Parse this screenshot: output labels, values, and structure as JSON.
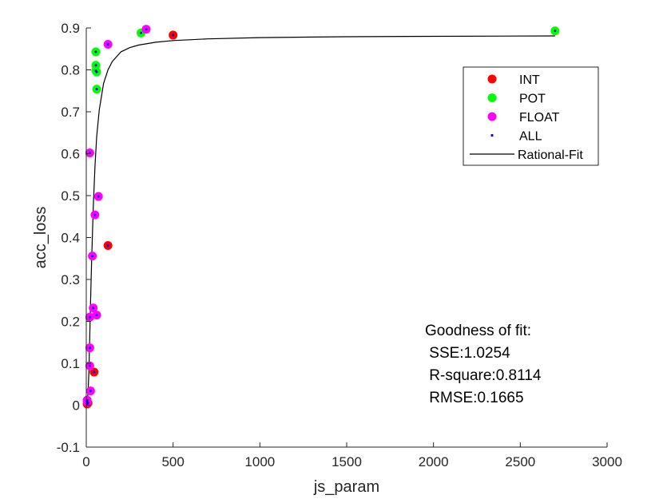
{
  "chart_data": {
    "type": "scatter",
    "xlabel": "js_param",
    "ylabel": "acc_loss",
    "xlim": [
      0,
      3000
    ],
    "ylim": [
      -0.1,
      0.9
    ],
    "xticks": [
      0,
      500,
      1000,
      1500,
      2000,
      2500,
      3000
    ],
    "yticks": [
      -0.1,
      0,
      0.1,
      0.2,
      0.3,
      0.4,
      0.5,
      0.6,
      0.7,
      0.8,
      0.9
    ],
    "xtick_labels": [
      "0",
      "500",
      "1000",
      "1500",
      "2000",
      "2500",
      "3000"
    ],
    "ytick_labels": [
      "-0.1",
      "0",
      "0.1",
      "0.2",
      "0.3",
      "0.4",
      "0.5",
      "0.6",
      "0.7",
      "0.8",
      "0.9"
    ],
    "grid": false,
    "legend_position": "top-right",
    "series": [
      {
        "name": "INT",
        "color": "#ff0000",
        "marker": "large-circle",
        "points": [
          [
            500,
            0.883
          ],
          [
            125,
            0.381
          ],
          [
            45,
            0.079
          ],
          [
            10,
            0.005
          ],
          [
            5,
            0.003
          ]
        ]
      },
      {
        "name": "POT",
        "color": "#00ff00",
        "marker": "large-circle",
        "points": [
          [
            2700,
            0.893
          ],
          [
            315,
            0.888
          ],
          [
            55,
            0.843
          ],
          [
            55,
            0.811
          ],
          [
            55,
            0.798
          ],
          [
            60,
            0.795
          ],
          [
            60,
            0.754
          ]
        ]
      },
      {
        "name": "FLOAT",
        "color": "#ff00ff",
        "marker": "large-circle",
        "points": [
          [
            345,
            0.897
          ],
          [
            125,
            0.861
          ],
          [
            20,
            0.602
          ],
          [
            70,
            0.498
          ],
          [
            50,
            0.454
          ],
          [
            35,
            0.356
          ],
          [
            40,
            0.232
          ],
          [
            60,
            0.215
          ],
          [
            20,
            0.21
          ],
          [
            20,
            0.137
          ],
          [
            20,
            0.094
          ],
          [
            25,
            0.034
          ],
          [
            5,
            0.012
          ],
          [
            5,
            0.008
          ]
        ]
      },
      {
        "name": "ALL",
        "color": "#0000ff",
        "marker": "dot",
        "points": [
          [
            500,
            0.883
          ],
          [
            125,
            0.381
          ],
          [
            45,
            0.079
          ],
          [
            10,
            0.005
          ],
          [
            5,
            0.003
          ],
          [
            2700,
            0.893
          ],
          [
            315,
            0.888
          ],
          [
            55,
            0.843
          ],
          [
            55,
            0.811
          ],
          [
            55,
            0.798
          ],
          [
            60,
            0.795
          ],
          [
            60,
            0.754
          ],
          [
            345,
            0.897
          ],
          [
            125,
            0.861
          ],
          [
            20,
            0.602
          ],
          [
            70,
            0.498
          ],
          [
            50,
            0.454
          ],
          [
            35,
            0.356
          ],
          [
            40,
            0.232
          ],
          [
            60,
            0.215
          ],
          [
            20,
            0.21
          ],
          [
            20,
            0.137
          ],
          [
            20,
            0.094
          ],
          [
            25,
            0.034
          ],
          [
            5,
            0.012
          ],
          [
            5,
            0.008
          ]
        ]
      },
      {
        "name": "Rational-Fit",
        "color": "#000000",
        "marker": "line",
        "points": [
          [
            0,
            0
          ],
          [
            5,
            0.008
          ],
          [
            10,
            0.03
          ],
          [
            15,
            0.08
          ],
          [
            20,
            0.16
          ],
          [
            25,
            0.25
          ],
          [
            30,
            0.33
          ],
          [
            40,
            0.47
          ],
          [
            50,
            0.57
          ],
          [
            60,
            0.64
          ],
          [
            75,
            0.705
          ],
          [
            100,
            0.768
          ],
          [
            125,
            0.8
          ],
          [
            150,
            0.82
          ],
          [
            200,
            0.843
          ],
          [
            250,
            0.853
          ],
          [
            300,
            0.859
          ],
          [
            400,
            0.866
          ],
          [
            500,
            0.87
          ],
          [
            700,
            0.874
          ],
          [
            1000,
            0.877
          ],
          [
            1500,
            0.879
          ],
          [
            2000,
            0.88
          ],
          [
            2700,
            0.881
          ]
        ]
      }
    ],
    "annotations": [
      "Goodness of fit:",
      " SSE:1.0254",
      " R-square:0.8114",
      " RMSE:0.1665"
    ]
  }
}
